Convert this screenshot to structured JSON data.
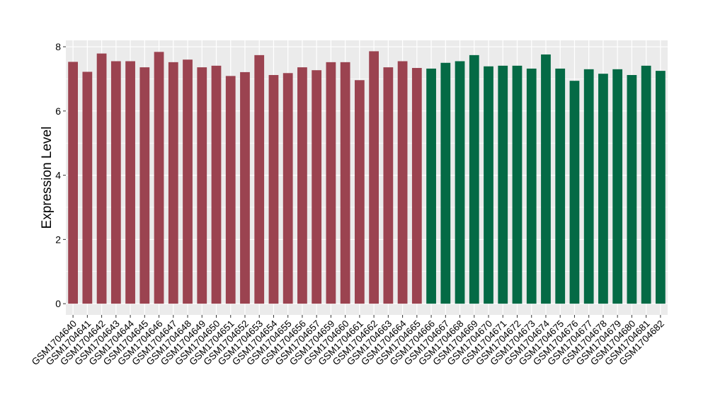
{
  "chart_data": {
    "type": "bar",
    "ylabel": "Expression Level",
    "xlabel": "",
    "ylim": [
      -0.35,
      8.2
    ],
    "yticks": [
      0,
      2,
      4,
      6,
      8
    ],
    "grid": true,
    "categories": [
      "GSM1704640",
      "GSM1704641",
      "GSM1704642",
      "GSM1704643",
      "GSM1704644",
      "GSM1704645",
      "GSM1704646",
      "GSM1704647",
      "GSM1704648",
      "GSM1704649",
      "GSM1704650",
      "GSM1704651",
      "GSM1704652",
      "GSM1704653",
      "GSM1704654",
      "GSM1704655",
      "GSM1704656",
      "GSM1704657",
      "GSM1704659",
      "GSM1704660",
      "GSM1704661",
      "GSM1704662",
      "GSM1704663",
      "GSM1704664",
      "GSM1704665",
      "GSM1704666",
      "GSM1704667",
      "GSM1704668",
      "GSM1704669",
      "GSM1704670",
      "GSM1704671",
      "GSM1704672",
      "GSM1704673",
      "GSM1704674",
      "GSM1704675",
      "GSM1704676",
      "GSM1704677",
      "GSM1704678",
      "GSM1704679",
      "GSM1704680",
      "GSM1704681",
      "GSM1704682"
    ],
    "values": [
      7.53,
      7.22,
      7.79,
      7.55,
      7.55,
      7.36,
      7.84,
      7.52,
      7.6,
      7.36,
      7.41,
      7.09,
      7.21,
      7.74,
      7.12,
      7.18,
      7.36,
      7.27,
      7.52,
      7.52,
      6.96,
      7.86,
      7.36,
      7.55,
      7.34,
      7.32,
      7.5,
      7.55,
      7.74,
      7.39,
      7.41,
      7.41,
      7.32,
      7.76,
      7.32,
      6.94,
      7.3,
      7.16,
      7.3,
      7.12,
      7.41,
      7.25
    ],
    "groups": [
      0,
      0,
      0,
      0,
      0,
      0,
      0,
      0,
      0,
      0,
      0,
      0,
      0,
      0,
      0,
      0,
      0,
      0,
      0,
      0,
      0,
      0,
      0,
      0,
      0,
      1,
      1,
      1,
      1,
      1,
      1,
      1,
      1,
      1,
      1,
      1,
      1,
      1,
      1,
      1,
      1,
      1
    ],
    "group_colors": [
      "#9B4350",
      "#046A45"
    ],
    "panel_color": "#EBEBEB",
    "grid_color": "#FFFFFF"
  }
}
